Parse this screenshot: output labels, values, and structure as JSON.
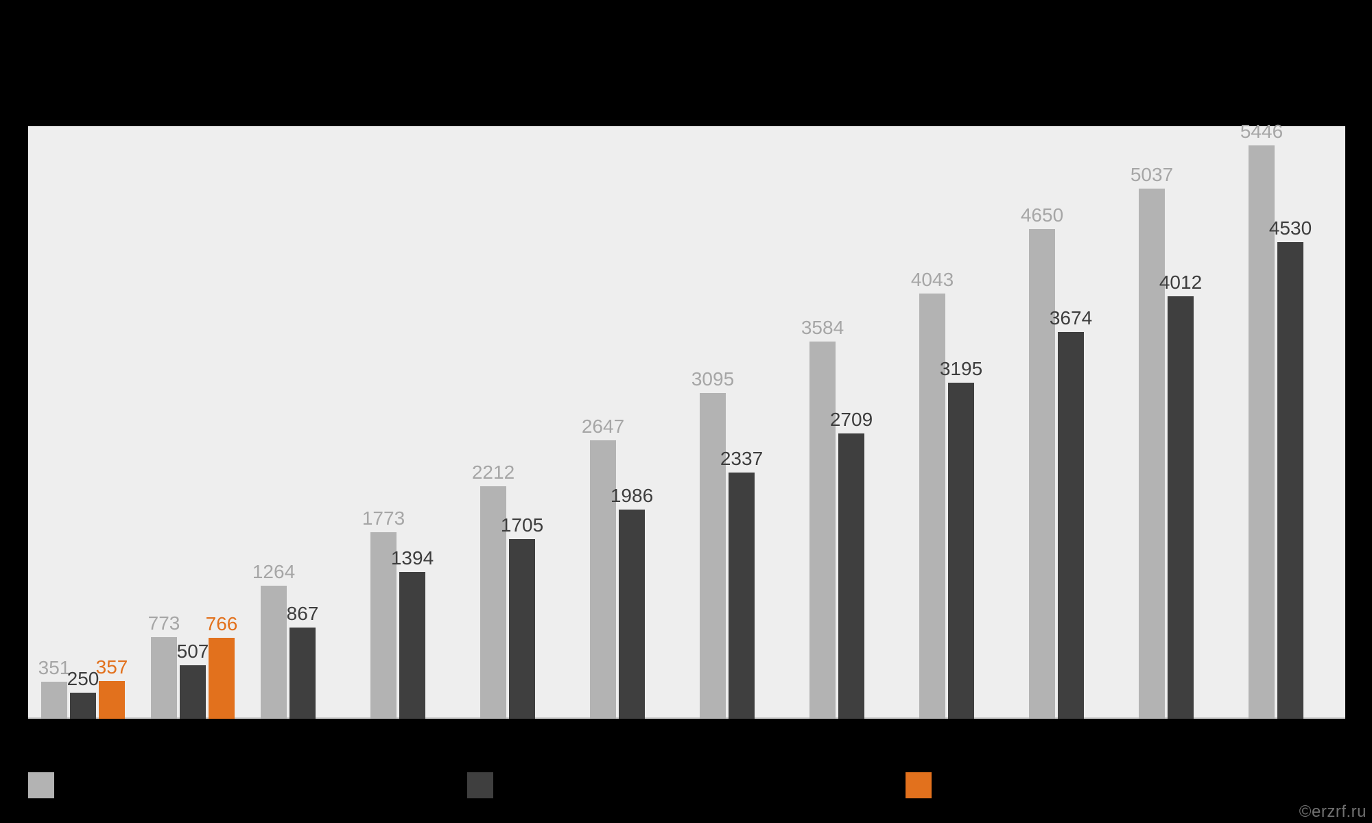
{
  "watermark": {
    "text": "©erzrf.ru",
    "color": "#707070"
  },
  "colors": {
    "background": "#000000",
    "plot_background": "#eeeeee",
    "axis_line": "#c9c9c9",
    "series_gray": "#b3b3b3",
    "series_dark": "#3f3f3f",
    "series_orange": "#e2711d",
    "label_gray": "#a6a6a6",
    "label_dark": "#3d3d3d",
    "label_orange": "#e2711d",
    "watermark": "#707070"
  },
  "legend": {
    "items": [
      {
        "name": "series-gray",
        "color": "#b3b3b3",
        "label": ""
      },
      {
        "name": "series-dark",
        "color": "#3f3f3f",
        "label": ""
      },
      {
        "name": "series-orange",
        "color": "#e2711d",
        "label": ""
      }
    ],
    "note": "legend swatches visible; legend label text not visible (black on black)"
  },
  "chart_data": {
    "type": "bar",
    "title": "",
    "xlabel": "",
    "ylabel": "",
    "ylim": [
      0,
      5630
    ],
    "grid": false,
    "legend_position": "bottom",
    "value_labels": true,
    "groups_count": 12,
    "series": [
      {
        "name": "series-gray",
        "color": "#b3b3b3",
        "label_color": "#a6a6a6",
        "values": [
          351,
          773,
          1264,
          1773,
          2212,
          2647,
          3095,
          3584,
          4043,
          4650,
          5037,
          5446
        ]
      },
      {
        "name": "series-dark",
        "color": "#3f3f3f",
        "label_color": "#3d3d3d",
        "values": [
          250,
          507,
          867,
          1394,
          1705,
          1986,
          2337,
          2709,
          3195,
          3674,
          4012,
          4530
        ]
      },
      {
        "name": "series-orange",
        "color": "#e2711d",
        "label_color": "#e2711d",
        "values": [
          357,
          766,
          null,
          null,
          null,
          null,
          null,
          null,
          null,
          null,
          null,
          null
        ]
      }
    ],
    "note": "title, category axis labels and legend texts are rendered black-on-black and are not visible"
  }
}
